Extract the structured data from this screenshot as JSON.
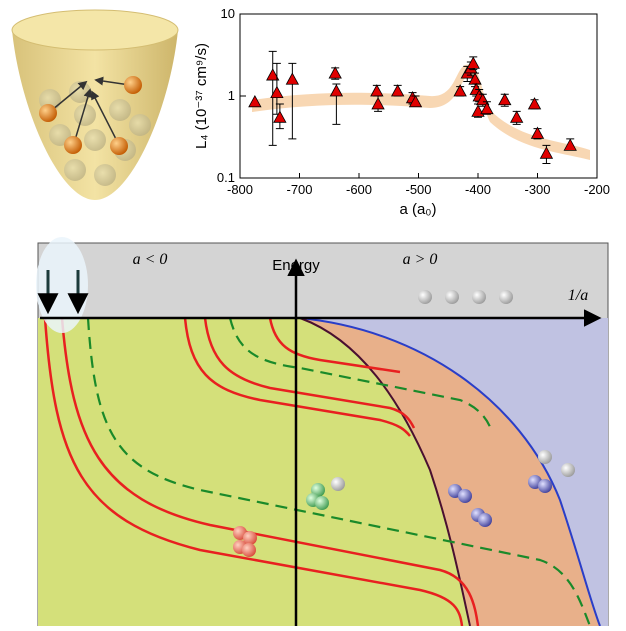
{
  "chart_data": {
    "type": "scatter",
    "xlabel": "a (a₀)",
    "ylabel": "L₄ (10⁻³⁷ cm⁹/s)",
    "xlim": [
      -800,
      -200
    ],
    "xticks": [
      -800,
      -700,
      -600,
      -500,
      -400,
      -300,
      -200
    ],
    "ylim": [
      0.1,
      10
    ],
    "yticks": [
      0.1,
      1,
      10
    ],
    "log_y": true,
    "color": "#e00000",
    "x": [
      -775,
      -745,
      -738,
      -733,
      -712,
      -640,
      -638,
      -570,
      -568,
      -535,
      -510,
      -505,
      -430,
      -418,
      -412,
      -408,
      -405,
      -403,
      -400,
      -398,
      -392,
      -385,
      -355,
      -335,
      -305,
      -300,
      -285,
      -245
    ],
    "values": [
      0.85,
      1.8,
      1.1,
      0.55,
      1.6,
      1.9,
      1.15,
      1.15,
      0.8,
      1.15,
      0.95,
      0.85,
      1.15,
      1.9,
      2.2,
      2.5,
      1.6,
      1.2,
      0.65,
      1.0,
      0.9,
      0.7,
      0.9,
      0.55,
      0.8,
      0.35,
      0.2,
      0.25
    ],
    "lower": [
      null,
      0.25,
      0.6,
      0.4,
      0.3,
      1.6,
      0.45,
      1.0,
      0.65,
      1.0,
      0.8,
      0.75,
      1.0,
      1.5,
      1.8,
      2.1,
      1.3,
      1.0,
      0.55,
      0.85,
      0.75,
      0.6,
      0.75,
      0.45,
      0.7,
      0.3,
      0.15,
      0.22
    ],
    "upper": [
      null,
      3.5,
      2.5,
      0.8,
      2.5,
      2.2,
      1.4,
      1.35,
      1.0,
      1.35,
      1.1,
      1.0,
      1.3,
      2.3,
      2.6,
      3.0,
      1.9,
      1.4,
      0.8,
      1.2,
      1.05,
      0.85,
      1.05,
      0.65,
      0.9,
      0.4,
      0.25,
      0.3
    ]
  },
  "diagram": {
    "labels": {
      "negative": "a < 0",
      "energy": "Energy",
      "positive": "a > 0",
      "axis": "1/a"
    }
  }
}
